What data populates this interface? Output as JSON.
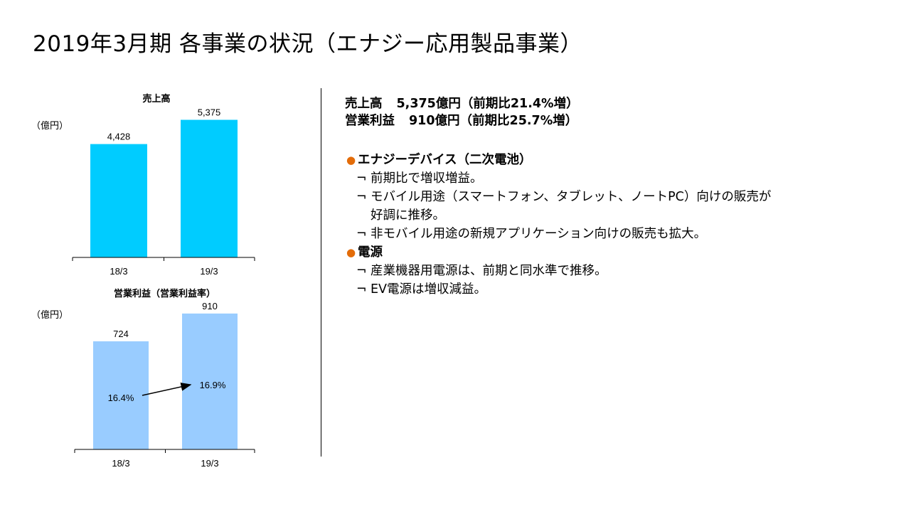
{
  "page_title": "2019年3月期 各事業の状況（エナジー応用製品事業）",
  "chart_data": [
    {
      "type": "bar",
      "title": "売上高",
      "unit_label": "（億円）",
      "categories": [
        "18/3",
        "19/3"
      ],
      "values": [
        4428,
        5375
      ],
      "value_labels": [
        "4,428",
        "5,375"
      ],
      "color": "#00CCFF",
      "ylim": [
        0,
        6000
      ]
    },
    {
      "type": "bar",
      "title": "営業利益（営業利益率）",
      "unit_label": "（億円）",
      "categories": [
        "18/3",
        "19/3"
      ],
      "values": [
        724,
        910
      ],
      "value_labels": [
        "724",
        "910"
      ],
      "margin_labels": [
        "16.4%",
        "16.9%"
      ],
      "color": "#99CCFF",
      "ylim": [
        0,
        1000
      ]
    }
  ],
  "summary": [
    {
      "label": "売上高",
      "value": "5,375億円（前期比21.4%増）"
    },
    {
      "label": "営業利益",
      "value": "910億円（前期比25.7%増）"
    }
  ],
  "sections": [
    {
      "heading": "エナジーデバイス（二次電池）",
      "items": [
        [
          "前期比で増収増益。"
        ],
        [
          "モバイル用途（スマートフォン、タブレット、ノートPC）向けの販売が",
          "好調に推移。"
        ],
        [
          "非モバイル用途の新規アプリケーション向けの販売も拡大。"
        ]
      ]
    },
    {
      "heading": "電源",
      "items": [
        [
          "産業機器用電源は、前期と同水準で推移。"
        ],
        [
          "EV電源は増収減益。"
        ]
      ]
    }
  ],
  "bullet_glyph": "●",
  "sub_glyph": "¬",
  "accent_color": "#E36C09"
}
